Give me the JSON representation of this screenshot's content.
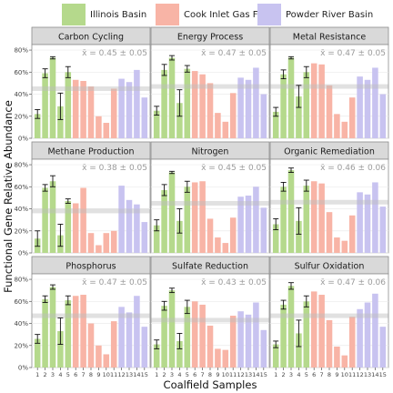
{
  "legend": [
    {
      "label": "Illinois Basin",
      "color": "#b5d98c"
    },
    {
      "label": "Cook Inlet Gas Field",
      "color": "#f8b4a6"
    },
    {
      "label": "Powder River Basin",
      "color": "#c8c3f0"
    }
  ],
  "ylabel": "Functional Gene Relative Abundance",
  "xlabel": "Coalfield Samples",
  "chart_data": {
    "type": "bar",
    "x": [
      "1",
      "2",
      "3",
      "4",
      "5",
      "6",
      "7",
      "8",
      "9",
      "10",
      "11",
      "12",
      "13",
      "14",
      "15"
    ],
    "yticks": [
      "0%",
      "20%",
      "40%",
      "60%",
      "80%"
    ],
    "ylim": [
      0,
      0.85
    ],
    "groups": [
      {
        "name": "Illinois Basin",
        "samples": [
          "1",
          "2",
          "3",
          "4",
          "5"
        ],
        "color": "#b5d98c"
      },
      {
        "name": "Cook Inlet Gas Field",
        "samples": [
          "6",
          "7",
          "8",
          "9",
          "10",
          "11"
        ],
        "color": "#f8b4a6"
      },
      {
        "name": "Powder River Basin",
        "samples": [
          "12",
          "13",
          "14",
          "15"
        ],
        "color": "#c8c3f0"
      }
    ],
    "panels": [
      {
        "title": "Carbon Cycling",
        "annotation": "x̄ = 0.45 ± 0.05",
        "mean": 0.45,
        "values": [
          0.22,
          0.59,
          0.73,
          0.29,
          0.6,
          0.53,
          0.52,
          0.47,
          0.2,
          0.14,
          0.45,
          0.54,
          0.51,
          0.62,
          0.37
        ],
        "errors": [
          0.04,
          0.04,
          0.01,
          0.12,
          0.05,
          0,
          0,
          0,
          0,
          0,
          0,
          0,
          0,
          0,
          0
        ]
      },
      {
        "title": "Energy Process",
        "annotation": "x̄ = 0.47 ± 0.05",
        "mean": 0.47,
        "values": [
          0.25,
          0.62,
          0.73,
          0.32,
          0.63,
          0.61,
          0.58,
          0.5,
          0.23,
          0.15,
          0.41,
          0.55,
          0.53,
          0.64,
          0.4
        ],
        "errors": [
          0.04,
          0.05,
          0.02,
          0.12,
          0.03,
          0,
          0,
          0,
          0,
          0,
          0,
          0,
          0,
          0,
          0
        ]
      },
      {
        "title": "Metal Resistance",
        "annotation": "x̄ = 0.47 ± 0.05",
        "mean": 0.47,
        "values": [
          0.24,
          0.58,
          0.73,
          0.38,
          0.6,
          0.68,
          0.67,
          0.48,
          0.22,
          0.15,
          0.37,
          0.56,
          0.53,
          0.64,
          0.4
        ],
        "errors": [
          0.04,
          0.04,
          0.01,
          0.1,
          0.05,
          0,
          0,
          0,
          0,
          0,
          0,
          0,
          0,
          0,
          0
        ]
      },
      {
        "title": "Methane Production",
        "annotation": "x̄ = 0.38 ± 0.05",
        "mean": 0.38,
        "values": [
          0.13,
          0.59,
          0.65,
          0.16,
          0.47,
          0.45,
          0.59,
          0.18,
          0.07,
          0.18,
          0.2,
          0.61,
          0.48,
          0.44,
          0.28
        ],
        "errors": [
          0.07,
          0.03,
          0.05,
          0.1,
          0.02,
          0,
          0,
          0,
          0,
          0,
          0,
          0,
          0,
          0,
          0
        ]
      },
      {
        "title": "Nitrogen",
        "annotation": "x̄ = 0.45 ± 0.05",
        "mean": 0.45,
        "values": [
          0.25,
          0.57,
          0.73,
          0.29,
          0.6,
          0.64,
          0.65,
          0.31,
          0.14,
          0.09,
          0.32,
          0.51,
          0.52,
          0.6,
          0.41
        ],
        "errors": [
          0.05,
          0.05,
          0.01,
          0.11,
          0.05,
          0,
          0,
          0,
          0,
          0,
          0,
          0,
          0,
          0,
          0
        ]
      },
      {
        "title": "Organic Remediation",
        "annotation": "x̄ = 0.46 ± 0.06",
        "mean": 0.46,
        "values": [
          0.26,
          0.6,
          0.75,
          0.29,
          0.61,
          0.65,
          0.63,
          0.37,
          0.14,
          0.11,
          0.34,
          0.55,
          0.53,
          0.64,
          0.42
        ],
        "errors": [
          0.05,
          0.04,
          0.02,
          0.12,
          0.05,
          0,
          0,
          0,
          0,
          0,
          0,
          0,
          0,
          0,
          0
        ]
      },
      {
        "title": "Phosphorus",
        "annotation": "x̄ = 0.47 ± 0.05",
        "mean": 0.47,
        "values": [
          0.26,
          0.62,
          0.73,
          0.33,
          0.61,
          0.65,
          0.66,
          0.4,
          0.2,
          0.12,
          0.42,
          0.55,
          0.5,
          0.65,
          0.37
        ],
        "errors": [
          0.04,
          0.03,
          0.02,
          0.12,
          0.04,
          0,
          0,
          0,
          0,
          0,
          0,
          0,
          0,
          0,
          0
        ]
      },
      {
        "title": "Sulfate Reduction",
        "annotation": "x̄ = 0.43 ± 0.05",
        "mean": 0.43,
        "values": [
          0.21,
          0.56,
          0.7,
          0.24,
          0.55,
          0.6,
          0.57,
          0.38,
          0.17,
          0.16,
          0.47,
          0.51,
          0.48,
          0.59,
          0.34
        ],
        "errors": [
          0.04,
          0.04,
          0.02,
          0.07,
          0.06,
          0,
          0,
          0,
          0,
          0,
          0,
          0,
          0,
          0,
          0
        ]
      },
      {
        "title": "Sulfur Oxidation",
        "annotation": "x̄ = 0.47 ± 0.06",
        "mean": 0.47,
        "values": [
          0.21,
          0.57,
          0.74,
          0.31,
          0.6,
          0.69,
          0.66,
          0.43,
          0.19,
          0.11,
          0.46,
          0.53,
          0.59,
          0.67,
          0.37
        ],
        "errors": [
          0.03,
          0.04,
          0.03,
          0.12,
          0.05,
          0,
          0,
          0,
          0,
          0,
          0,
          0,
          0,
          0,
          0
        ]
      }
    ]
  }
}
